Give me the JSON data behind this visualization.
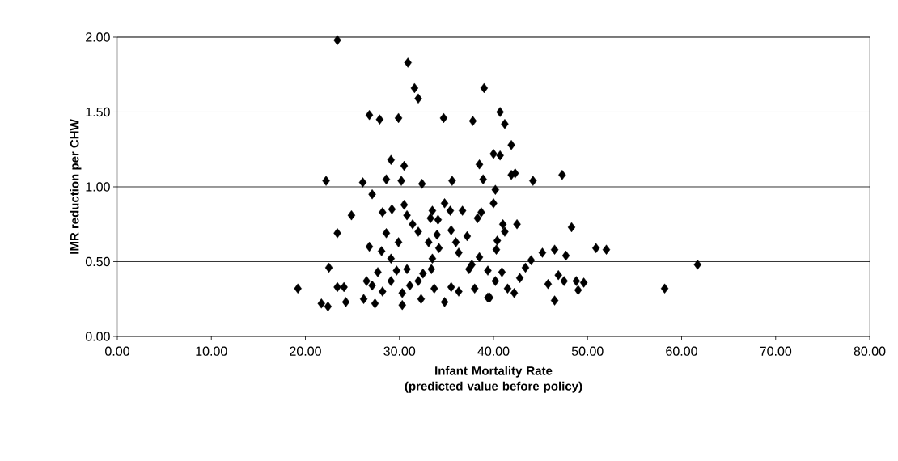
{
  "chart_data": {
    "type": "scatter",
    "xlabel": "Infant Mortality Rate (predicted value before policy)",
    "ylabel": "IMR reduction per CHW",
    "xlim": [
      0,
      80
    ],
    "ylim": [
      0,
      2
    ],
    "xticks": [
      {
        "value": 0,
        "label": "0.00"
      },
      {
        "value": 10,
        "label": "10.00"
      },
      {
        "value": 20,
        "label": "20.00"
      },
      {
        "value": 30,
        "label": "30.00"
      },
      {
        "value": 40,
        "label": "40.00"
      },
      {
        "value": 50,
        "label": "50.00"
      },
      {
        "value": 60,
        "label": "60.00"
      },
      {
        "value": 70,
        "label": "70.00"
      },
      {
        "value": 80,
        "label": "80.00"
      }
    ],
    "yticks": [
      {
        "value": 0,
        "label": "0.00"
      },
      {
        "value": 0.5,
        "label": "0.50"
      },
      {
        "value": 1,
        "label": "1.00"
      },
      {
        "value": 1.5,
        "label": "1.50"
      },
      {
        "value": 2,
        "label": "2.00"
      }
    ],
    "grid": "y",
    "marker": "diamond",
    "series": [
      {
        "color": "#000000",
        "x": [
          23.4,
          30.9,
          31.6,
          32.0,
          39.0,
          26.8,
          27.9,
          29.9,
          34.7,
          37.8,
          29.1,
          30.5,
          38.5,
          22.2,
          26.1,
          28.6,
          30.2,
          32.4,
          35.6,
          38.9,
          40.7,
          41.2,
          41.9,
          40.0,
          40.7,
          42.3,
          41.9,
          44.2,
          47.3,
          19.2,
          21.7,
          22.4,
          22.5,
          23.4,
          23.4,
          24.1,
          24.3,
          24.9,
          26.8,
          26.5,
          26.2,
          27.1,
          28.1,
          28.6,
          28.2,
          29.2,
          29.1,
          30.5,
          30.8,
          29.9,
          31.4,
          32.0,
          33.1,
          33.5,
          33.3,
          34.1,
          34.8,
          35.4,
          34.0,
          35.5,
          36.7,
          38.3,
          38.7,
          37.2,
          36.0,
          36.3,
          34.2,
          33.5,
          38.5,
          27.7,
          27.1,
          27.4,
          28.2,
          29.1,
          29.7,
          30.3,
          30.3,
          30.8,
          31.1,
          32.0,
          32.3,
          32.5,
          33.4,
          33.7,
          34.8,
          35.5,
          36.3,
          37.4,
          38.0,
          39.4,
          37.7,
          40.2,
          40.0,
          41.0,
          42.5,
          41.2,
          40.4,
          40.3,
          48.3,
          44.0,
          45.2,
          46.5,
          47.7,
          50.9,
          52.0,
          61.7,
          58.2,
          43.4,
          40.9,
          39.4,
          40.2,
          42.8,
          41.5,
          42.2,
          39.6,
          45.8,
          46.9,
          47.5,
          46.5,
          48.8,
          49.6,
          49.0
        ],
        "values": [
          1.98,
          1.83,
          1.66,
          1.59,
          1.66,
          1.48,
          1.45,
          1.46,
          1.46,
          1.44,
          1.18,
          1.14,
          1.15,
          1.04,
          1.03,
          1.05,
          1.04,
          1.02,
          1.04,
          1.05,
          1.5,
          1.42,
          1.28,
          1.22,
          1.21,
          1.09,
          1.08,
          1.04,
          1.08,
          0.32,
          0.22,
          0.2,
          0.46,
          0.69,
          0.33,
          0.33,
          0.23,
          0.81,
          0.6,
          0.37,
          0.25,
          0.95,
          0.57,
          0.69,
          0.83,
          0.85,
          0.52,
          0.88,
          0.81,
          0.63,
          0.75,
          0.7,
          0.63,
          0.84,
          0.79,
          0.78,
          0.89,
          0.84,
          0.68,
          0.71,
          0.84,
          0.79,
          0.83,
          0.67,
          0.63,
          0.56,
          0.59,
          0.52,
          0.53,
          0.43,
          0.34,
          0.22,
          0.3,
          0.37,
          0.44,
          0.29,
          0.21,
          0.45,
          0.34,
          0.37,
          0.25,
          0.42,
          0.45,
          0.32,
          0.23,
          0.33,
          0.3,
          0.45,
          0.32,
          0.26,
          0.48,
          0.98,
          0.89,
          0.75,
          0.75,
          0.7,
          0.64,
          0.58,
          0.73,
          0.51,
          0.56,
          0.58,
          0.54,
          0.59,
          0.58,
          0.48,
          0.32,
          0.46,
          0.43,
          0.44,
          0.37,
          0.39,
          0.32,
          0.29,
          0.26,
          0.35,
          0.41,
          0.37,
          0.24,
          0.37,
          0.36,
          0.31
        ]
      }
    ]
  }
}
